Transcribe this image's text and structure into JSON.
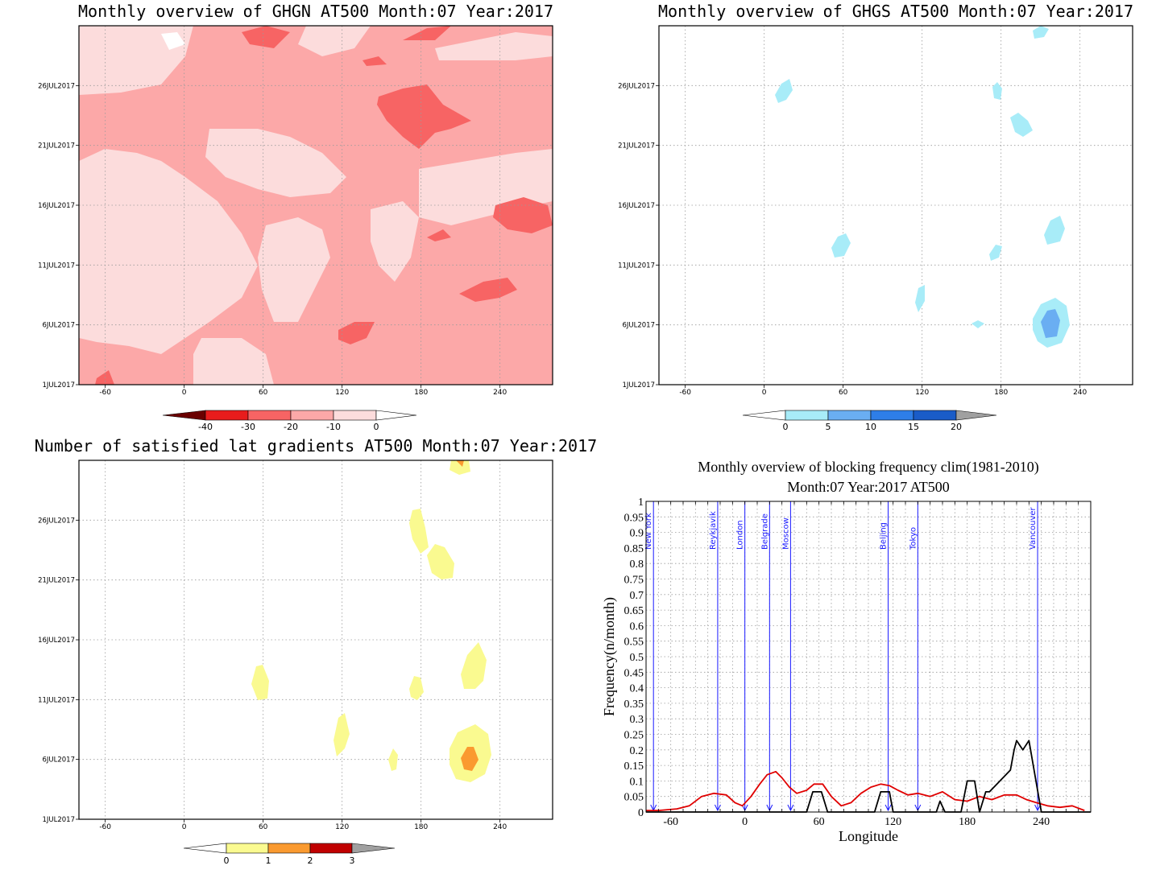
{
  "colors": {
    "red_light": "#fcdcdc",
    "red_1": "#fca8a8",
    "red_2": "#f76464",
    "red_3": "#e81c1c",
    "red_4": "#6a0000",
    "blue_1": "#a8ecf8",
    "blue_2": "#6aaef2",
    "blue_3": "#2e7ee8",
    "blue_4": "#1a5cc8",
    "blue_over": "#a0a0a0",
    "yellow_1": "#fafa90",
    "orange_1": "#fa9a30",
    "red_dark": "#c00000",
    "gray_over": "#a0a0a0",
    "city_line": "#1a1aff",
    "clim_line": "#e00000",
    "obs_line": "#000000"
  },
  "chart_data": [
    {
      "type": "heatmap",
      "title": "Monthly overview of GHGN AT500 Month:07 Year:2017",
      "x_ticks": [
        "-60",
        "0",
        "60",
        "120",
        "180",
        "240"
      ],
      "y_ticks": [
        "1JUL2017",
        "6JUL2017",
        "11JUL2017",
        "16JUL2017",
        "21JUL2017",
        "26JUL2017"
      ],
      "xlim": [
        -80,
        280
      ],
      "ylim": [
        1,
        31
      ],
      "colorbar": [
        "-40",
        "-30",
        "-20",
        "-10",
        "0"
      ],
      "grid": true
    },
    {
      "type": "heatmap",
      "title": "Monthly overview of GHGS AT500 Month:07 Year:2017",
      "x_ticks": [
        "-60",
        "0",
        "60",
        "120",
        "180",
        "240"
      ],
      "y_ticks": [
        "1JUL2017",
        "6JUL2017",
        "11JUL2017",
        "16JUL2017",
        "21JUL2017",
        "26JUL2017"
      ],
      "xlim": [
        -80,
        280
      ],
      "ylim": [
        1,
        31
      ],
      "colorbar": [
        "0",
        "5",
        "10",
        "15",
        "20"
      ],
      "grid": true
    },
    {
      "type": "heatmap",
      "title": "Number of satisfied lat gradients AT500 Month:07 Year:2017",
      "x_ticks": [
        "-60",
        "0",
        "60",
        "120",
        "180",
        "240"
      ],
      "y_ticks": [
        "1JUL2017",
        "6JUL2017",
        "11JUL2017",
        "16JUL2017",
        "21JUL2017",
        "26JUL2017"
      ],
      "xlim": [
        -80,
        280
      ],
      "ylim": [
        1,
        31
      ],
      "colorbar": [
        "0",
        "1",
        "2",
        "3"
      ],
      "grid": true
    },
    {
      "type": "line",
      "title": "Monthly overview of blocking frequency clim(1981-2010)",
      "subtitle": "Month:07 Year:2017  AT500",
      "xlabel": "Longitude",
      "ylabel": "Frequency(n/month)",
      "xlim": [
        -80,
        280
      ],
      "ylim": [
        0,
        1
      ],
      "x_ticks": [
        "-60",
        "0",
        "60",
        "120",
        "180",
        "240"
      ],
      "y_ticks": [
        "0",
        "0.05",
        "0.1",
        "0.15",
        "0.2",
        "0.25",
        "0.3",
        "0.35",
        "0.4",
        "0.45",
        "0.5",
        "0.55",
        "0.6",
        "0.65",
        "0.7",
        "0.75",
        "0.8",
        "0.85",
        "0.9",
        "0.95",
        "1"
      ],
      "cities": [
        {
          "name": "New York",
          "lon": -74
        },
        {
          "name": "Reykjavik",
          "lon": -22
        },
        {
          "name": "London",
          "lon": 0
        },
        {
          "name": "Belgrade",
          "lon": 20
        },
        {
          "name": "Moscow",
          "lon": 37
        },
        {
          "name": "Beijing",
          "lon": 116
        },
        {
          "name": "Tokyo",
          "lon": 140
        },
        {
          "name": "Vancouver",
          "lon": 237
        }
      ],
      "series": [
        {
          "color": "#e00000",
          "x": [
            -80,
            -70,
            -55,
            -45,
            -35,
            -25,
            -15,
            -8,
            -2,
            5,
            12,
            18,
            25,
            30,
            36,
            42,
            50,
            56,
            63,
            70,
            78,
            86,
            94,
            102,
            110,
            117,
            124,
            132,
            140,
            150,
            160,
            170,
            180,
            190,
            200,
            210,
            220,
            228,
            236,
            245,
            255,
            265,
            275
          ],
          "y": [
            0.005,
            0.005,
            0.01,
            0.02,
            0.05,
            0.06,
            0.055,
            0.03,
            0.02,
            0.05,
            0.09,
            0.12,
            0.13,
            0.11,
            0.08,
            0.06,
            0.07,
            0.09,
            0.09,
            0.05,
            0.02,
            0.03,
            0.06,
            0.08,
            0.09,
            0.085,
            0.07,
            0.055,
            0.06,
            0.05,
            0.065,
            0.04,
            0.035,
            0.05,
            0.04,
            0.055,
            0.055,
            0.04,
            0.03,
            0.02,
            0.015,
            0.02,
            0.005
          ]
        },
        {
          "color": "#000000",
          "x": [
            -80,
            50,
            55,
            62,
            67,
            105,
            110,
            117,
            120,
            140,
            155,
            158,
            162,
            175,
            180,
            186,
            190,
            195,
            198,
            215,
            218,
            220,
            225,
            230,
            240,
            280
          ],
          "y": [
            0,
            0,
            0.065,
            0.065,
            0,
            0,
            0.065,
            0.065,
            0,
            0,
            0,
            0.035,
            0,
            0,
            0.1,
            0.1,
            0,
            0.065,
            0.065,
            0.135,
            0.2,
            0.23,
            0.2,
            0.23,
            0,
            0
          ]
        }
      ],
      "grid": true
    }
  ]
}
